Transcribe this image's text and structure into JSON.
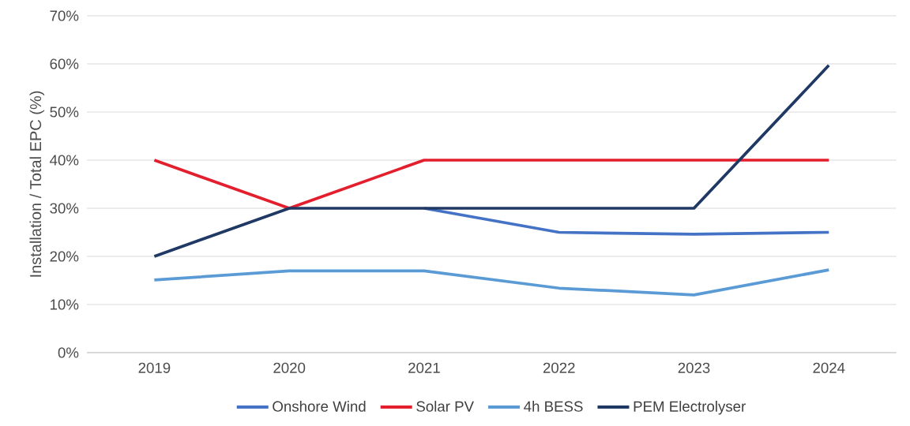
{
  "chart_data": {
    "type": "line",
    "ylabel": "Installation / Total EPC (%)",
    "categories": [
      "2019",
      "2020",
      "2021",
      "2022",
      "2023",
      "2024"
    ],
    "series": [
      {
        "name": "Onshore Wind",
        "color": "#4472c4",
        "values": [
          null,
          null,
          30,
          25,
          24.6,
          25
        ]
      },
      {
        "name": "Solar PV",
        "color": "#e31e2d",
        "values": [
          40,
          30,
          40,
          40,
          40,
          40
        ]
      },
      {
        "name": "4h BESS",
        "color": "#5b9bd5",
        "values": [
          15.1,
          17,
          17,
          13.4,
          12,
          17.2
        ]
      },
      {
        "name": "PEM Electrolyser",
        "color": "#203864",
        "values": [
          20,
          30,
          30,
          30,
          30,
          59.7
        ]
      }
    ],
    "ylim": [
      0,
      70
    ],
    "yticks": [
      {
        "value": 0,
        "label": "0%"
      },
      {
        "value": 10,
        "label": "10%"
      },
      {
        "value": 20,
        "label": "20%"
      },
      {
        "value": 30,
        "label": "30%"
      },
      {
        "value": 40,
        "label": "40%"
      },
      {
        "value": 50,
        "label": "50%"
      },
      {
        "value": 60,
        "label": "60%"
      },
      {
        "value": 70,
        "label": "70%"
      }
    ],
    "grid": "y",
    "legend": "bottom",
    "marker": "none",
    "line_style": "solid"
  }
}
